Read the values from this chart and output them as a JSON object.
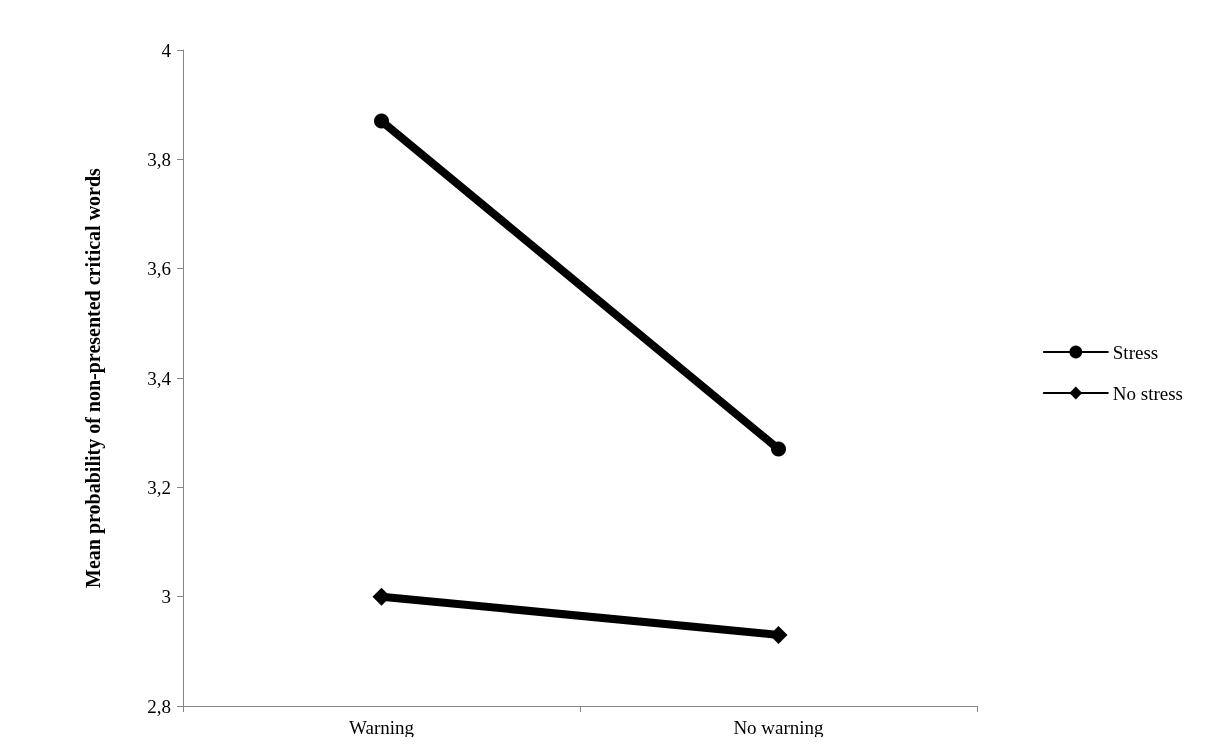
{
  "chart_data": {
    "type": "line",
    "ylabel": "Mean probability of non-presented critical words",
    "categories": [
      "Warning",
      "No warning"
    ],
    "series": [
      {
        "name": "Stress",
        "color": "#000000",
        "marker": "circle",
        "values": [
          3.87,
          3.27
        ]
      },
      {
        "name": "No stress",
        "color": "#000000",
        "marker": "diamond",
        "values": [
          3.0,
          2.93
        ]
      }
    ],
    "ylim": [
      2.8,
      4
    ],
    "yticks": [
      {
        "value": 2.8,
        "label": "2,8"
      },
      3,
      {
        "value": 3.2,
        "label": "3,2"
      },
      {
        "value": 3.4,
        "label": "3,4"
      },
      {
        "value": 3.6,
        "label": "3,6"
      },
      {
        "value": 3.8,
        "label": "3,8"
      },
      4
    ],
    "grid": false,
    "legend": "right",
    "line_style": "solid"
  }
}
